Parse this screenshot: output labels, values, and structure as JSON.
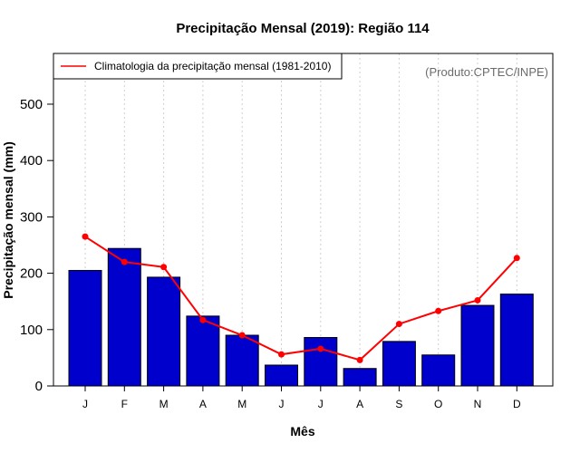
{
  "chart_data": {
    "type": "bar",
    "title": "Precipitação Mensal (2019): Região 114",
    "xlabel": "Mês",
    "ylabel": "Precipitação mensal (mm)",
    "categories": [
      "J",
      "F",
      "M",
      "A",
      "M",
      "J",
      "J",
      "A",
      "S",
      "O",
      "N",
      "D"
    ],
    "ylim": [
      0,
      590
    ],
    "yticks": [
      0,
      100,
      200,
      300,
      400,
      500
    ],
    "grid": true,
    "legend_position": "top-left",
    "series": [
      {
        "name": "Precipitação mensal (2019)",
        "kind": "bar",
        "color": "#0000cd",
        "values": [
          205,
          244,
          193,
          124,
          90,
          37,
          86,
          31,
          79,
          55,
          143,
          163
        ]
      },
      {
        "name": "Climatologia da precipitação mensal (1981-2010)",
        "kind": "line",
        "color": "#ff0000",
        "values": [
          265,
          220,
          211,
          117,
          90,
          56,
          66,
          46,
          110,
          133,
          152,
          227
        ]
      }
    ],
    "annotation": "(Produto:CPTEC/INPE)"
  }
}
